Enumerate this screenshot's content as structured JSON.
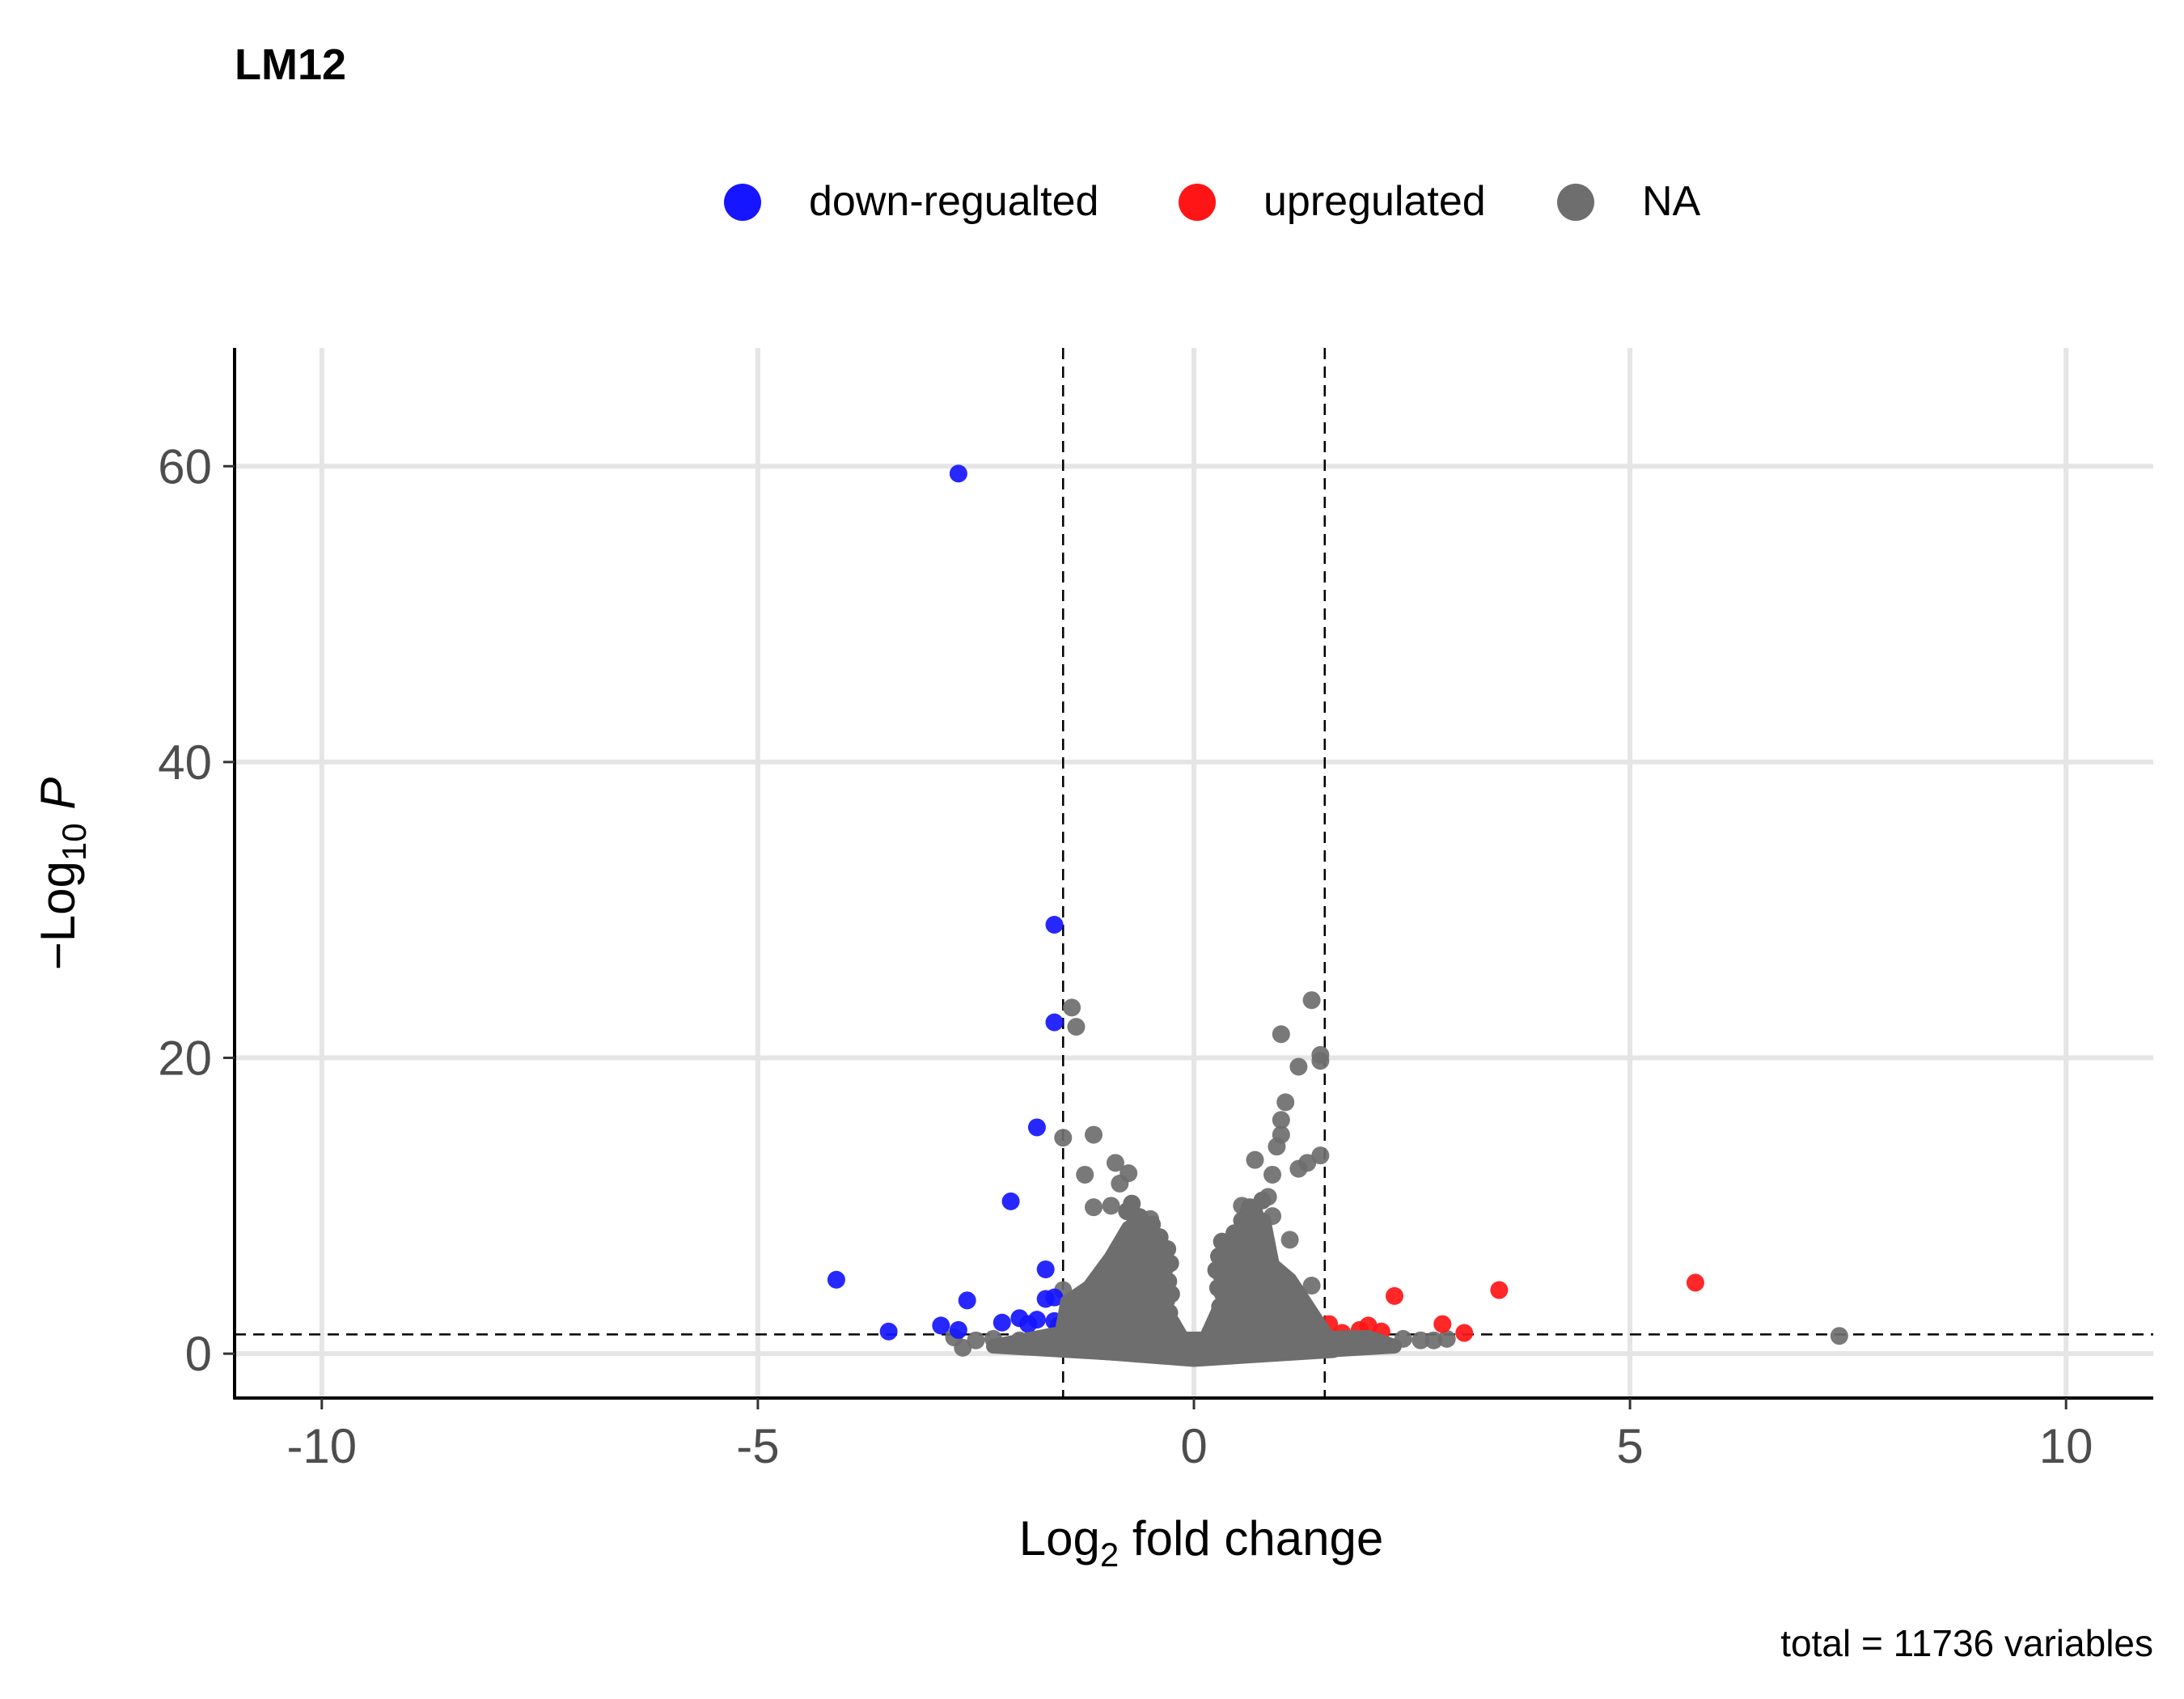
{
  "chart_data": {
    "type": "scatter",
    "title": "LM12",
    "xlabel": "Log2 fold change",
    "ylabel": "-Log10 P",
    "caption": "total = 11736 variables",
    "xlim": [
      -11,
      11
    ],
    "ylim": [
      -3,
      68
    ],
    "x_ticks": [
      -10,
      -5,
      0,
      5,
      10
    ],
    "x_tick_labels": [
      "-10",
      "-5",
      "0",
      "5",
      "10"
    ],
    "y_ticks": [
      0,
      20,
      40,
      60
    ],
    "y_tick_labels": [
      "0",
      "20",
      "40",
      "60"
    ],
    "grid": true,
    "legend_position": "top",
    "cutoffs": {
      "log2fc": [
        -1.5,
        1.5
      ],
      "neg_log10_p": 1.3
    },
    "series": [
      {
        "name": "down-regualted",
        "color": "#1515FF",
        "points": [
          [
            -2.7,
            59.5
          ],
          [
            -1.6,
            29.0
          ],
          [
            -1.6,
            22.4
          ],
          [
            -1.8,
            15.3
          ],
          [
            -2.1,
            10.3
          ],
          [
            -4.1,
            5.0
          ],
          [
            -1.7,
            5.7
          ],
          [
            -2.6,
            3.6
          ],
          [
            -1.7,
            3.7
          ],
          [
            -1.6,
            3.8
          ],
          [
            -3.5,
            1.5
          ],
          [
            -2.9,
            1.9
          ],
          [
            -2.7,
            1.6
          ],
          [
            -2.2,
            2.1
          ],
          [
            -2.0,
            2.4
          ],
          [
            -1.9,
            2.0
          ],
          [
            -1.8,
            2.3
          ],
          [
            -1.6,
            2.2
          ],
          [
            -1.55,
            1.9
          ]
        ]
      },
      {
        "name": "upregulated",
        "color": "#FF1515",
        "points": [
          [
            5.75,
            4.8
          ],
          [
            3.5,
            4.3
          ],
          [
            2.3,
            3.9
          ],
          [
            1.55,
            2.0
          ],
          [
            1.7,
            1.4
          ],
          [
            1.9,
            1.6
          ],
          [
            2.0,
            1.9
          ],
          [
            2.15,
            1.5
          ],
          [
            2.85,
            2.0
          ],
          [
            3.1,
            1.4
          ]
        ]
      },
      {
        "name": "NA",
        "color": "#6E6E6E",
        "points": [
          [
            -1.4,
            23.4
          ],
          [
            -1.35,
            22.1
          ],
          [
            1.35,
            23.9
          ],
          [
            1.0,
            21.6
          ],
          [
            1.45,
            20.2
          ],
          [
            1.45,
            19.8
          ],
          [
            1.2,
            19.4
          ],
          [
            1.05,
            17.0
          ],
          [
            1.0,
            15.8
          ],
          [
            1.0,
            14.8
          ],
          [
            0.95,
            14.0
          ],
          [
            1.45,
            13.4
          ],
          [
            1.3,
            12.9
          ],
          [
            1.2,
            12.5
          ],
          [
            -1.5,
            14.6
          ],
          [
            -1.15,
            14.8
          ],
          [
            -0.9,
            12.9
          ],
          [
            -0.75,
            12.2
          ],
          [
            -1.25,
            12.1
          ],
          [
            -0.85,
            11.5
          ],
          [
            -0.95,
            10.0
          ],
          [
            -1.15,
            9.9
          ],
          [
            -0.7,
            9.5
          ],
          [
            0.7,
            13.1
          ],
          [
            0.9,
            12.1
          ],
          [
            0.85,
            10.6
          ],
          [
            0.55,
            10.0
          ],
          [
            0.9,
            9.3
          ],
          [
            -0.5,
            9.1
          ],
          [
            1.1,
            7.7
          ],
          [
            -1.5,
            4.3
          ],
          [
            1.35,
            4.6
          ],
          [
            7.4,
            1.2
          ],
          [
            -2.75,
            1.1
          ],
          [
            -2.65,
            0.4
          ],
          [
            -2.5,
            0.9
          ],
          [
            -2.3,
            1.0
          ],
          [
            -2.0,
            0.9
          ],
          [
            -1.8,
            0.7
          ],
          [
            2.4,
            1.0
          ],
          [
            2.6,
            0.9
          ],
          [
            2.75,
            0.9
          ],
          [
            2.9,
            1.0
          ]
        ]
      }
    ]
  }
}
